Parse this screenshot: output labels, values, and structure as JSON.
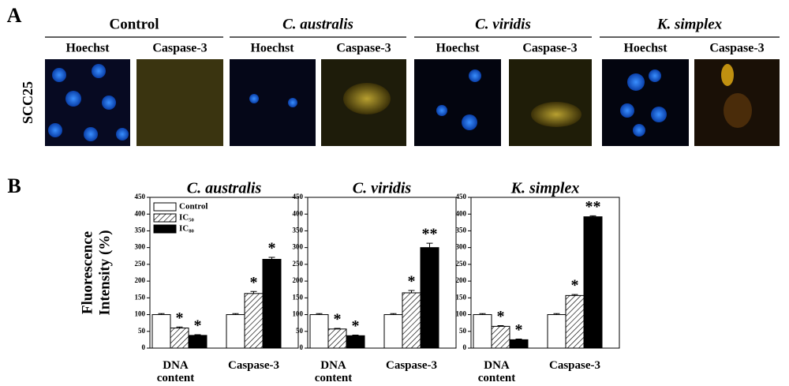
{
  "panel_a": {
    "label": "A",
    "row_label": "SCC25",
    "groups": [
      {
        "title": "Control",
        "channels": [
          "Hoechst",
          "Caspase-3"
        ]
      },
      {
        "title": "C. australis",
        "channels": [
          "Hoechst",
          "Caspase-3"
        ]
      },
      {
        "title": "C. viridis",
        "channels": [
          "Hoechst",
          "Caspase-3"
        ]
      },
      {
        "title": "K. simplex",
        "channels": [
          "Hoechst",
          "Caspase-3"
        ]
      }
    ]
  },
  "panel_b": {
    "label": "B"
  },
  "chart_data": [
    {
      "type": "bar",
      "title": "C. australis",
      "ylabel": [
        "Fluorescence",
        "Intensity (%)"
      ],
      "categories": [
        "DNA content",
        "Caspase-3"
      ],
      "ylim": [
        0,
        450
      ],
      "yticks": [
        0,
        50,
        100,
        150,
        200,
        250,
        300,
        350,
        400,
        450
      ],
      "legend": "top-left",
      "series": [
        {
          "name": "Control",
          "color": "#ffffff",
          "values": [
            100,
            100
          ],
          "errors": [
            3,
            3
          ],
          "annotations": [
            null,
            null
          ]
        },
        {
          "name": "IC₅₀",
          "color": "#ffffff",
          "pattern": "hatch",
          "values": [
            60,
            163
          ],
          "errors": [
            3,
            6
          ],
          "annotations": [
            "*",
            "*"
          ]
        },
        {
          "name": "IC₈₀",
          "color": "#000000",
          "values": [
            38,
            265
          ],
          "errors": [
            2,
            6
          ],
          "annotations": [
            "*",
            "*"
          ]
        }
      ]
    },
    {
      "type": "bar",
      "title": "C. viridis",
      "categories": [
        "DNA content",
        "Caspase-3"
      ],
      "ylim": [
        0,
        450
      ],
      "yticks": [
        0,
        50,
        100,
        150,
        200,
        250,
        300,
        350,
        400,
        450
      ],
      "series": [
        {
          "name": "Control",
          "color": "#ffffff",
          "values": [
            100,
            100
          ],
          "errors": [
            3,
            3
          ],
          "annotations": [
            null,
            null
          ]
        },
        {
          "name": "IC₅₀",
          "color": "#ffffff",
          "pattern": "hatch",
          "values": [
            57,
            165
          ],
          "errors": [
            2,
            7
          ],
          "annotations": [
            "*",
            "*"
          ]
        },
        {
          "name": "IC₈₀",
          "color": "#000000",
          "values": [
            37,
            300
          ],
          "errors": [
            2,
            13
          ],
          "annotations": [
            "*",
            "**"
          ]
        }
      ]
    },
    {
      "type": "bar",
      "title": "K. simplex",
      "categories": [
        "DNA content",
        "Caspase-3"
      ],
      "ylim": [
        0,
        450
      ],
      "yticks": [
        0,
        50,
        100,
        150,
        200,
        250,
        300,
        350,
        400,
        450
      ],
      "series": [
        {
          "name": "Control",
          "color": "#ffffff",
          "values": [
            100,
            100
          ],
          "errors": [
            3,
            3
          ],
          "annotations": [
            null,
            null
          ]
        },
        {
          "name": "IC₅₀",
          "color": "#ffffff",
          "pattern": "hatch",
          "values": [
            65,
            157
          ],
          "errors": [
            2,
            3
          ],
          "annotations": [
            "*",
            "*"
          ]
        },
        {
          "name": "IC₈₀",
          "color": "#000000",
          "values": [
            25,
            392
          ],
          "errors": [
            2,
            3
          ],
          "annotations": [
            "*",
            "**"
          ]
        }
      ]
    }
  ]
}
